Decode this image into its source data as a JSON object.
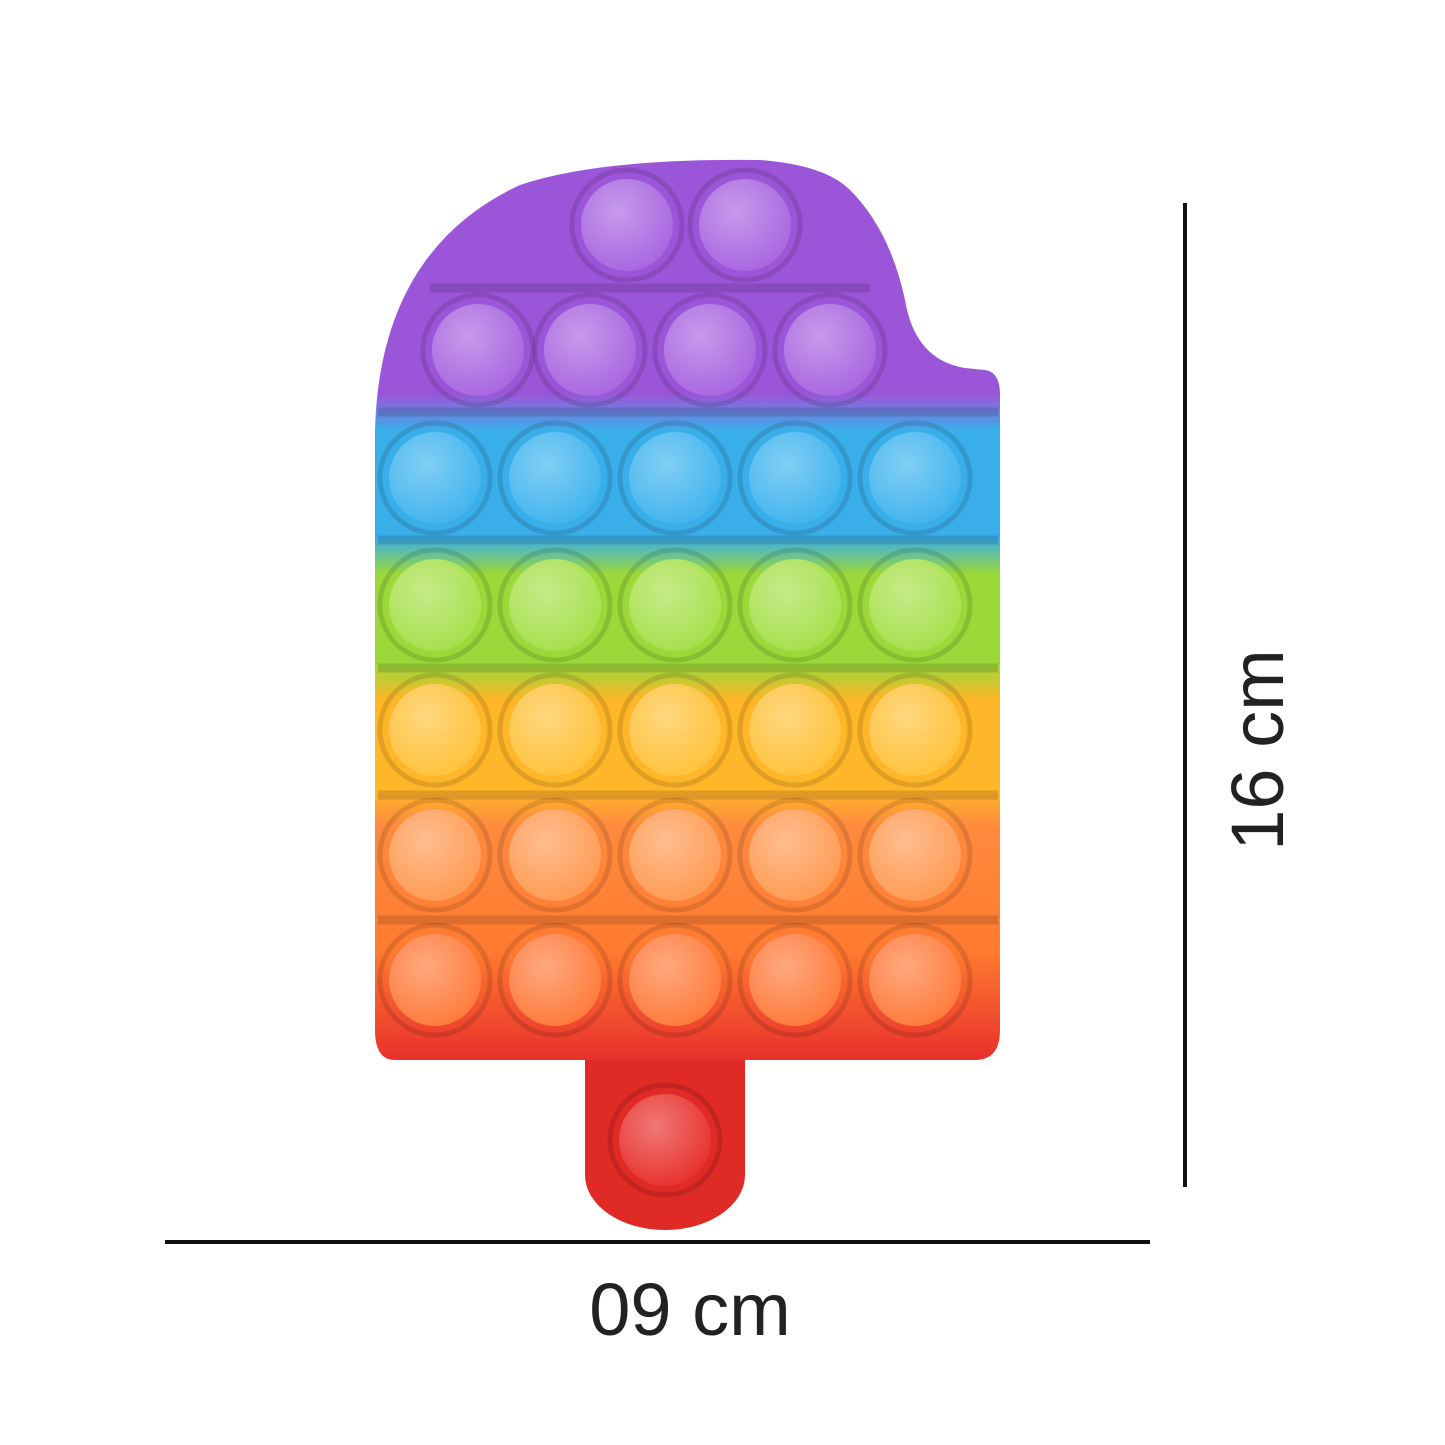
{
  "dimensions": {
    "height_label": "16 cm",
    "width_label": "09 cm"
  },
  "product": {
    "rows": [
      {
        "color": "#a865e0",
        "count": 2
      },
      {
        "color": "#a865e0",
        "count": 4
      },
      {
        "color": "#3fb4ee",
        "count": 5
      },
      {
        "color": "#a6e04a",
        "count": 5
      },
      {
        "color": "#ffc23a",
        "count": 5
      },
      {
        "color": "#ff9a52",
        "count": 5
      },
      {
        "color": "#ff7a3a",
        "count": 5
      }
    ],
    "stick_color": "#e8302c"
  },
  "colors": {
    "line": "#111111",
    "text": "#222222"
  }
}
